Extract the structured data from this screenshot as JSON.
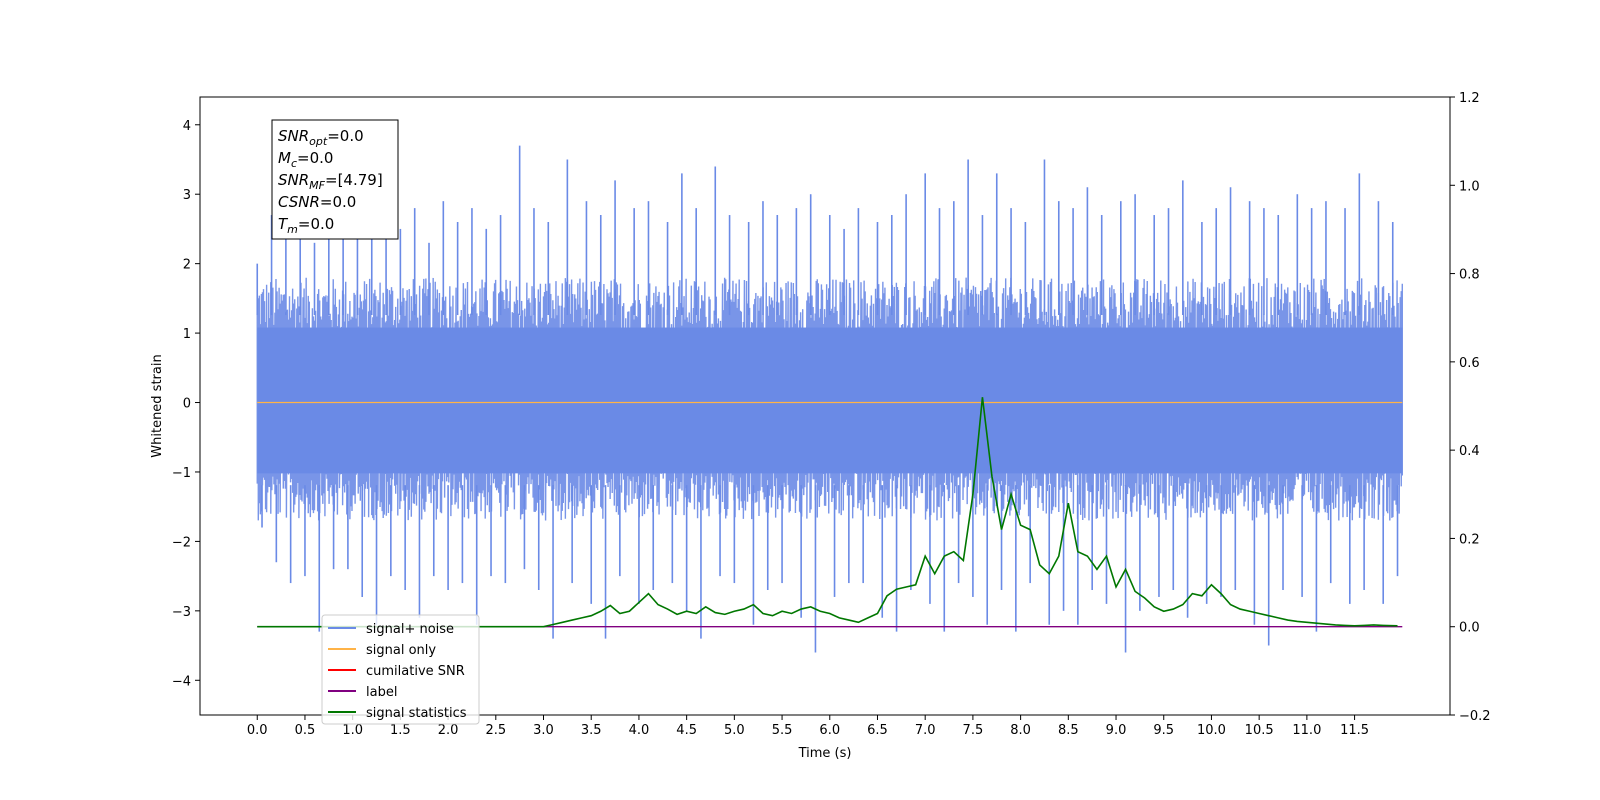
{
  "chart_data": {
    "type": "line",
    "title": "",
    "xlabel": "Time (s)",
    "ylabel": "Whitened strain",
    "ylabel_right": "",
    "xlim": [
      -0.6,
      12.5
    ],
    "ylim": [
      -4.5,
      4.4
    ],
    "ylim_right": [
      -0.2,
      1.2
    ],
    "x_ticks": [
      "0.0",
      "0.5",
      "1.0",
      "1.5",
      "2.0",
      "2.5",
      "3.0",
      "3.5",
      "4.0",
      "4.5",
      "5.0",
      "5.5",
      "6.0",
      "6.5",
      "7.0",
      "7.5",
      "8.0",
      "8.5",
      "9.0",
      "9.5",
      "10.0",
      "10.5",
      "11.0",
      "11.5"
    ],
    "y_ticks": [
      "4",
      "3",
      "2",
      "1",
      "0",
      "−1",
      "−2",
      "−3",
      "−4"
    ],
    "y_ticks_right": [
      "1.2",
      "1.0",
      "0.8",
      "0.6",
      "0.4",
      "0.2",
      "0.0",
      "−0.2"
    ],
    "grid": false,
    "legend_position": "lower-left",
    "colors": {
      "signal_noise": "#6a8ae6",
      "signal_only": "#ffb347",
      "cumulative_snr": "#ff0000",
      "label": "#800080",
      "signal_statistics": "#007700"
    },
    "annotation": {
      "lines": [
        {
          "base": "SNR",
          "sub": "opt",
          "value": "=0.0"
        },
        {
          "base": "M",
          "sub": "c",
          "value": "=0.0"
        },
        {
          "base": "SNR",
          "sub": "MF",
          "value": "=[4.79]"
        },
        {
          "base": "CSNR",
          "sub": "",
          "value": "=0.0"
        },
        {
          "base": "T",
          "sub": "m",
          "value": "=0.0"
        }
      ]
    },
    "series": [
      {
        "name": "signal+ noise",
        "axis": "left",
        "x_range": [
          0.0,
          12.0
        ],
        "band_upper": 1.8,
        "band_lower": -1.7,
        "peaks_x": [
          0.0,
          0.15,
          0.3,
          0.45,
          0.6,
          0.75,
          0.9,
          1.05,
          1.2,
          1.35,
          1.5,
          1.65,
          1.8,
          1.95,
          2.1,
          2.25,
          2.4,
          2.55,
          2.75,
          2.9,
          3.05,
          3.25,
          3.45,
          3.6,
          3.75,
          3.95,
          4.1,
          4.3,
          4.45,
          4.6,
          4.8,
          4.95,
          5.15,
          5.3,
          5.45,
          5.65,
          5.8,
          6.0,
          6.15,
          6.3,
          6.5,
          6.65,
          6.8,
          7.0,
          7.15,
          7.3,
          7.45,
          7.6,
          7.75,
          7.9,
          8.05,
          8.25,
          8.4,
          8.55,
          8.7,
          8.85,
          9.05,
          9.2,
          9.4,
          9.55,
          9.7,
          9.9,
          10.05,
          10.2,
          10.4,
          10.55,
          10.7,
          10.9,
          11.05,
          11.2,
          11.4,
          11.55,
          11.75,
          11.9
        ],
        "peaks_max": [
          2.0,
          2.7,
          2.5,
          2.8,
          2.3,
          2.6,
          2.5,
          2.9,
          2.4,
          2.6,
          2.5,
          2.8,
          2.3,
          2.9,
          2.6,
          2.8,
          2.5,
          2.7,
          3.7,
          2.8,
          2.6,
          3.5,
          2.9,
          2.7,
          3.2,
          2.8,
          2.9,
          2.6,
          3.3,
          2.8,
          3.4,
          2.7,
          2.6,
          2.9,
          2.7,
          2.8,
          3.0,
          2.7,
          2.5,
          2.8,
          2.6,
          2.7,
          3.0,
          3.3,
          2.8,
          2.9,
          3.5,
          2.7,
          3.3,
          2.8,
          2.6,
          3.5,
          2.9,
          2.8,
          3.1,
          2.7,
          2.9,
          3.0,
          2.7,
          2.8,
          3.2,
          2.6,
          2.8,
          3.1,
          2.9,
          2.8,
          2.7,
          3.0,
          2.8,
          2.9,
          2.8,
          3.3,
          2.9,
          2.6
        ],
        "peaks_min": [
          -1.8,
          -2.3,
          -2.6,
          -2.5,
          -3.3,
          -2.4,
          -2.4,
          -2.8,
          -3.2,
          -2.5,
          -2.7,
          -3.1,
          -2.5,
          -2.7,
          -2.6,
          -3.2,
          -2.5,
          -2.6,
          -2.4,
          -2.7,
          -3.4,
          -2.6,
          -2.9,
          -3.4,
          -2.5,
          -2.9,
          -2.7,
          -2.6,
          -3.0,
          -3.4,
          -2.5,
          -2.6,
          -3.2,
          -2.7,
          -2.6,
          -3.1,
          -3.6,
          -2.8,
          -2.6,
          -2.6,
          -3.1,
          -3.3,
          -2.7,
          -2.9,
          -3.3,
          -2.6,
          -2.8,
          -3.2,
          -2.7,
          -3.3,
          -2.6,
          -3.2,
          -3.0,
          -3.2,
          -2.7,
          -2.9,
          -3.6,
          -3.0,
          -2.8,
          -2.7,
          -3.1,
          -2.9,
          -2.8,
          -2.7,
          -3.2,
          -3.5,
          -2.7,
          -2.8,
          -3.3,
          -2.6,
          -2.9,
          -2.7,
          -2.9,
          -2.5
        ]
      },
      {
        "name": "signal only",
        "axis": "left",
        "x": [
          0.0,
          12.0
        ],
        "values": [
          0.0,
          0.0
        ]
      },
      {
        "name": "cumilative SNR",
        "axis": "right",
        "x": [],
        "values": []
      },
      {
        "name": "label",
        "axis": "right",
        "x": [
          0.0,
          12.0
        ],
        "values": [
          0.0,
          0.0
        ]
      },
      {
        "name": "signal statistics",
        "axis": "right",
        "x": [
          0.0,
          3.0,
          3.1,
          3.2,
          3.3,
          3.4,
          3.5,
          3.6,
          3.7,
          3.8,
          3.9,
          4.0,
          4.1,
          4.2,
          4.3,
          4.4,
          4.5,
          4.6,
          4.7,
          4.8,
          4.9,
          5.0,
          5.1,
          5.2,
          5.3,
          5.4,
          5.5,
          5.6,
          5.7,
          5.8,
          5.9,
          6.0,
          6.1,
          6.2,
          6.3,
          6.4,
          6.5,
          6.6,
          6.7,
          6.8,
          6.9,
          7.0,
          7.1,
          7.2,
          7.3,
          7.4,
          7.5,
          7.6,
          7.7,
          7.8,
          7.9,
          8.0,
          8.1,
          8.2,
          8.3,
          8.4,
          8.5,
          8.6,
          8.7,
          8.8,
          8.9,
          9.0,
          9.1,
          9.2,
          9.3,
          9.4,
          9.5,
          9.6,
          9.7,
          9.8,
          9.9,
          10.0,
          10.1,
          10.2,
          10.3,
          10.4,
          10.5,
          10.6,
          10.7,
          10.8,
          10.9,
          11.0,
          11.1,
          11.2,
          11.3,
          11.4,
          11.5,
          11.6,
          11.7,
          11.8,
          11.95
        ],
        "values": [
          0.0,
          0.0,
          0.005,
          0.01,
          0.015,
          0.02,
          0.025,
          0.035,
          0.048,
          0.03,
          0.035,
          0.055,
          0.075,
          0.05,
          0.04,
          0.028,
          0.035,
          0.03,
          0.045,
          0.032,
          0.028,
          0.035,
          0.04,
          0.05,
          0.03,
          0.025,
          0.035,
          0.03,
          0.04,
          0.045,
          0.035,
          0.03,
          0.02,
          0.015,
          0.01,
          0.02,
          0.03,
          0.07,
          0.085,
          0.09,
          0.095,
          0.16,
          0.12,
          0.16,
          0.17,
          0.15,
          0.3,
          0.52,
          0.34,
          0.22,
          0.3,
          0.23,
          0.22,
          0.14,
          0.12,
          0.16,
          0.28,
          0.17,
          0.16,
          0.13,
          0.16,
          0.09,
          0.13,
          0.08,
          0.065,
          0.045,
          0.035,
          0.04,
          0.05,
          0.075,
          0.07,
          0.095,
          0.075,
          0.05,
          0.04,
          0.035,
          0.03,
          0.025,
          0.02,
          0.015,
          0.012,
          0.01,
          0.008,
          0.006,
          0.004,
          0.003,
          0.002,
          0.003,
          0.004,
          0.003,
          0.002
        ]
      }
    ]
  }
}
